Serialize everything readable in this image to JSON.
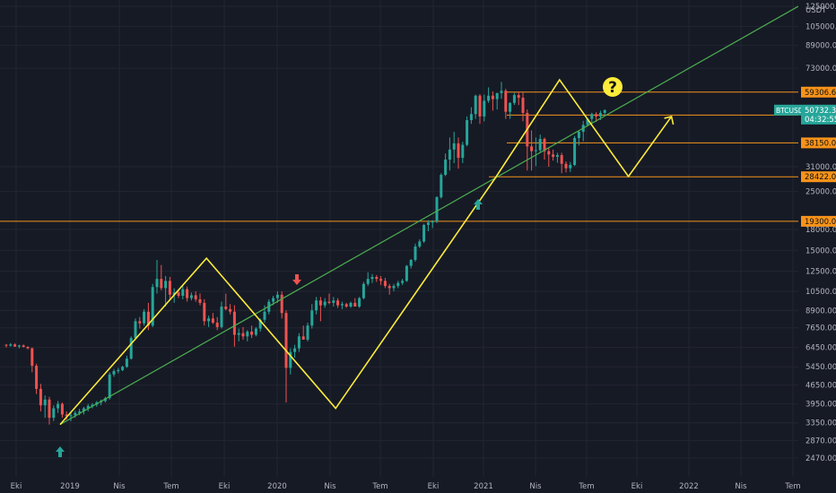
{
  "colors": {
    "background": "#161a25",
    "grid": "#232632",
    "axis_text": "#b2b5be",
    "up": "#26a69a",
    "down": "#ef5350",
    "level_line": "#f7931a",
    "pattern": "#ffeb3b",
    "trendline": "#4caf50",
    "price_badge": "#26a69a",
    "arrow_up": "#26a69a",
    "arrow_down": "#ef5350",
    "question_badge": "#ffeb3b"
  },
  "chart_data": {
    "type": "candlestick",
    "symbol": "BTCUSDT",
    "quote_currency": "USDT",
    "y_scale": "log",
    "ylim": [
      2300,
      130000
    ],
    "x_tick_labels": [
      "Eki",
      "2019",
      "Nis",
      "Tem",
      "Eki",
      "2020",
      "Nis",
      "Tem",
      "Eki",
      "2021",
      "Nis",
      "Tem",
      "Eki",
      "2022",
      "Nis",
      "Tem"
    ],
    "y_tick_labels": [
      "125000.00",
      "105000.00",
      "89000.00",
      "73000.00",
      "31000.00",
      "25000.00",
      "18000.00",
      "15000.00",
      "12500.00",
      "10500.00",
      "8900.00",
      "7650.00",
      "6450.00",
      "5450.00",
      "4650.00",
      "3950.00",
      "3350.00",
      "2870.00",
      "2470.00"
    ],
    "current_price": {
      "label": "BTCUSDT",
      "value": "50732.30",
      "countdown": "04:32:55"
    },
    "horizontal_levels": [
      "59306.65",
      "48577.79",
      "38150.02",
      "28422.00",
      "19300.00"
    ],
    "annotation_question": "?",
    "candles": [
      [
        6600,
        6650,
        6450,
        6550
      ],
      [
        6550,
        6700,
        6500,
        6620
      ],
      [
        6620,
        6680,
        6480,
        6500
      ],
      [
        6500,
        6600,
        6400,
        6560
      ],
      [
        6560,
        6620,
        6450,
        6480
      ],
      [
        6480,
        6520,
        6350,
        6400
      ],
      [
        6400,
        6450,
        5200,
        5500
      ],
      [
        5500,
        5600,
        4300,
        4500
      ],
      [
        4500,
        4700,
        3700,
        3900
      ],
      [
        3900,
        4250,
        3500,
        4100
      ],
      [
        4100,
        4200,
        3300,
        3500
      ],
      [
        3500,
        3900,
        3400,
        3800
      ],
      [
        3800,
        4050,
        3650,
        3950
      ],
      [
        3950,
        4000,
        3500,
        3600
      ],
      [
        3600,
        3700,
        3450,
        3550
      ],
      [
        3550,
        3650,
        3400,
        3580
      ],
      [
        3580,
        3720,
        3500,
        3650
      ],
      [
        3650,
        3780,
        3580,
        3700
      ],
      [
        3700,
        3850,
        3600,
        3800
      ],
      [
        3800,
        3950,
        3700,
        3880
      ],
      [
        3880,
        3980,
        3800,
        3920
      ],
      [
        3920,
        4050,
        3850,
        4000
      ],
      [
        4000,
        4100,
        3900,
        4050
      ],
      [
        4050,
        4200,
        4000,
        4150
      ],
      [
        4150,
        5200,
        4100,
        5100
      ],
      [
        5100,
        5350,
        5000,
        5250
      ],
      [
        5250,
        5400,
        5150,
        5300
      ],
      [
        5300,
        5500,
        5250,
        5450
      ],
      [
        5450,
        6000,
        5400,
        5850
      ],
      [
        5850,
        7100,
        5800,
        7000
      ],
      [
        7000,
        8300,
        6900,
        8100
      ],
      [
        8100,
        8400,
        7600,
        7950
      ],
      [
        7950,
        9000,
        7800,
        8800
      ],
      [
        8800,
        9500,
        7500,
        7800
      ],
      [
        7800,
        11200,
        7700,
        10900
      ],
      [
        10900,
        13800,
        10300,
        11700
      ],
      [
        11700,
        13200,
        10600,
        10800
      ],
      [
        10800,
        12000,
        9200,
        11500
      ],
      [
        11500,
        11900,
        9800,
        10200
      ],
      [
        10200,
        10800,
        9500,
        10400
      ],
      [
        10400,
        10700,
        9900,
        10100
      ],
      [
        10100,
        11000,
        9800,
        10700
      ],
      [
        10700,
        10950,
        9600,
        9900
      ],
      [
        9900,
        10400,
        9700,
        10150
      ],
      [
        10150,
        10500,
        9600,
        9800
      ],
      [
        9800,
        10300,
        9300,
        9500
      ],
      [
        9500,
        9800,
        7800,
        8100
      ],
      [
        8100,
        8500,
        7700,
        8300
      ],
      [
        8300,
        8700,
        7900,
        8000
      ],
      [
        8000,
        8400,
        7500,
        7700
      ],
      [
        7700,
        9600,
        7600,
        9200
      ],
      [
        9200,
        10300,
        8900,
        9000
      ],
      [
        9000,
        9400,
        8600,
        8800
      ],
      [
        8800,
        9300,
        6500,
        7200
      ],
      [
        7200,
        7600,
        6800,
        7300
      ],
      [
        7300,
        7700,
        6900,
        7100
      ],
      [
        7100,
        7500,
        6800,
        7400
      ],
      [
        7400,
        7800,
        7000,
        7200
      ],
      [
        7200,
        7700,
        7100,
        7600
      ],
      [
        7600,
        8300,
        7400,
        8200
      ],
      [
        8200,
        9300,
        8000,
        8800
      ],
      [
        8800,
        9800,
        8600,
        9600
      ],
      [
        9600,
        10100,
        9300,
        9900
      ],
      [
        9900,
        10500,
        9500,
        10200
      ],
      [
        10200,
        10500,
        8300,
        8700
      ],
      [
        8700,
        8900,
        4000,
        5400
      ],
      [
        5400,
        6400,
        5100,
        6200
      ],
      [
        6200,
        6600,
        5900,
        6400
      ],
      [
        6400,
        7300,
        6200,
        7100
      ],
      [
        7100,
        7800,
        6900,
        6900
      ],
      [
        6900,
        8000,
        6800,
        7800
      ],
      [
        7800,
        9400,
        7600,
        8900
      ],
      [
        8900,
        10000,
        8600,
        9700
      ],
      [
        9700,
        10000,
        8100,
        9300
      ],
      [
        9300,
        9900,
        9100,
        9600
      ],
      [
        9600,
        10300,
        9400,
        9500
      ],
      [
        9500,
        10000,
        9200,
        9700
      ],
      [
        9700,
        9900,
        9100,
        9300
      ],
      [
        9300,
        9600,
        9000,
        9400
      ],
      [
        9400,
        9500,
        9100,
        9200
      ],
      [
        9200,
        9600,
        9100,
        9500
      ],
      [
        9500,
        9900,
        9300,
        9200
      ],
      [
        9200,
        10000,
        9100,
        9900
      ],
      [
        9900,
        11400,
        9800,
        11200
      ],
      [
        11200,
        12400,
        11000,
        11700
      ],
      [
        11700,
        12200,
        11300,
        11900
      ],
      [
        11900,
        12100,
        11400,
        11700
      ],
      [
        11700,
        12000,
        11100,
        11500
      ],
      [
        11500,
        11800,
        10800,
        11000
      ],
      [
        11000,
        11200,
        10200,
        10800
      ],
      [
        10800,
        11200,
        10500,
        11000
      ],
      [
        11000,
        11500,
        10800,
        11300
      ],
      [
        11300,
        11700,
        11100,
        11500
      ],
      [
        11500,
        13200,
        11400,
        13100
      ],
      [
        13100,
        13900,
        12800,
        13800
      ],
      [
        13800,
        15900,
        13600,
        15500
      ],
      [
        15500,
        16500,
        15300,
        16200
      ],
      [
        16200,
        18900,
        16000,
        18700
      ],
      [
        18700,
        19500,
        17700,
        19100
      ],
      [
        19100,
        19500,
        18200,
        19300
      ],
      [
        19300,
        24000,
        19000,
        23800
      ],
      [
        23800,
        29300,
        23500,
        28900
      ],
      [
        28900,
        34800,
        28600,
        33000
      ],
      [
        33000,
        40000,
        30000,
        36000
      ],
      [
        36000,
        42000,
        32000,
        38000
      ],
      [
        38000,
        40000,
        30500,
        33500
      ],
      [
        33500,
        38500,
        32000,
        37500
      ],
      [
        37500,
        48000,
        37000,
        46500
      ],
      [
        46500,
        52000,
        45000,
        49000
      ],
      [
        49000,
        58000,
        47000,
        57500
      ],
      [
        57500,
        58300,
        45000,
        48000
      ],
      [
        48000,
        58000,
        46000,
        55000
      ],
      [
        55000,
        61800,
        54000,
        57500
      ],
      [
        57500,
        59700,
        50500,
        55800
      ],
      [
        55800,
        59000,
        51000,
        58800
      ],
      [
        58800,
        64800,
        56000,
        60000
      ],
      [
        60000,
        61000,
        47000,
        50000
      ],
      [
        50000,
        54300,
        47000,
        54000
      ],
      [
        54000,
        58900,
        53000,
        57800
      ],
      [
        57800,
        59500,
        53000,
        56500
      ],
      [
        56500,
        59000,
        46000,
        49500
      ],
      [
        49500,
        51000,
        30000,
        37000
      ],
      [
        37000,
        42500,
        30000,
        35500
      ],
      [
        35500,
        40000,
        31200,
        35800
      ],
      [
        35800,
        41000,
        35000,
        39500
      ],
      [
        39500,
        40000,
        33000,
        35500
      ],
      [
        35500,
        36500,
        31000,
        34500
      ],
      [
        34500,
        36000,
        32700,
        33800
      ],
      [
        33800,
        35000,
        32100,
        34300
      ],
      [
        34300,
        35000,
        29300,
        31800
      ],
      [
        31800,
        32500,
        29500,
        30600
      ],
      [
        30600,
        32300,
        29600,
        31500
      ],
      [
        31500,
        40500,
        31200,
        39800
      ],
      [
        39800,
        42300,
        37300,
        42000
      ],
      [
        42000,
        46200,
        38700,
        44600
      ],
      [
        44600,
        47300,
        44000,
        47000
      ],
      [
        47000,
        49600,
        45400,
        49000
      ],
      [
        49000,
        49800,
        45800,
        48000
      ],
      [
        48000,
        50500,
        46500,
        49500
      ],
      [
        49500,
        51000,
        48500,
        50732
      ]
    ],
    "trendline": [
      [
        0,
        3300
      ],
      [
        149,
        125000
      ]
    ],
    "pattern_path": [
      [
        0,
        3300
      ],
      [
        34,
        14000
      ],
      [
        64,
        3800
      ],
      [
        101,
        28000
      ],
      [
        116,
        66000
      ],
      [
        132,
        28500
      ],
      [
        142,
        48000
      ]
    ]
  }
}
